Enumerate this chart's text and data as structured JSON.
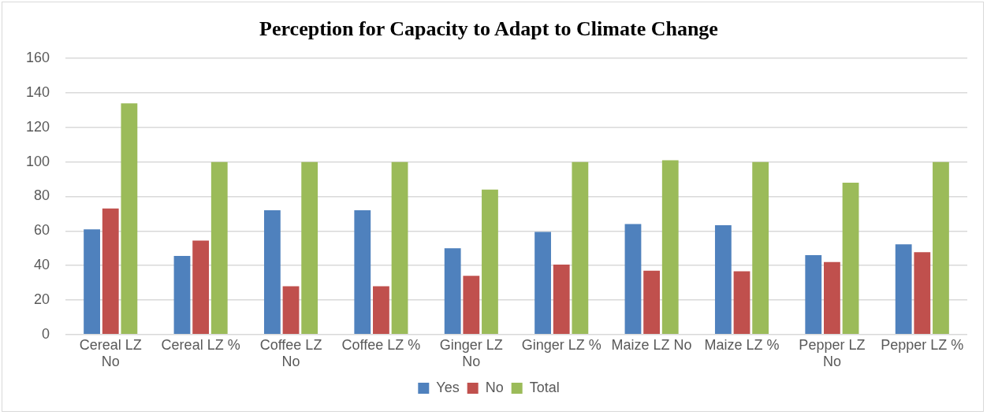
{
  "chart_data": {
    "type": "bar",
    "title": "Perception for Capacity to Adapt to Climate Change",
    "categories": [
      "Cereal LZ No",
      "Cereal LZ %",
      "Coffee LZ No",
      "Coffee LZ %",
      "Ginger LZ No",
      "Ginger LZ %",
      "Maize LZ No",
      "Maize LZ %",
      "Pepper LZ No",
      "Pepper LZ %"
    ],
    "series": [
      {
        "name": "Yes",
        "color": "#4f81bd",
        "values": [
          61,
          45.5,
          72,
          72,
          50,
          59.5,
          64,
          63.4,
          46,
          52.3
        ]
      },
      {
        "name": "No",
        "color": "#c0504d",
        "values": [
          73,
          54.5,
          28,
          28,
          34,
          40.5,
          37,
          36.6,
          42,
          47.7
        ]
      },
      {
        "name": "Total",
        "color": "#9bbb59",
        "values": [
          134,
          100,
          100,
          100,
          84,
          100,
          101,
          100,
          88,
          100
        ]
      }
    ],
    "ylim": [
      0,
      160
    ],
    "yticks": [
      0,
      20,
      40,
      60,
      80,
      100,
      120,
      140,
      160
    ],
    "grid": "y",
    "legend": "bottom"
  }
}
